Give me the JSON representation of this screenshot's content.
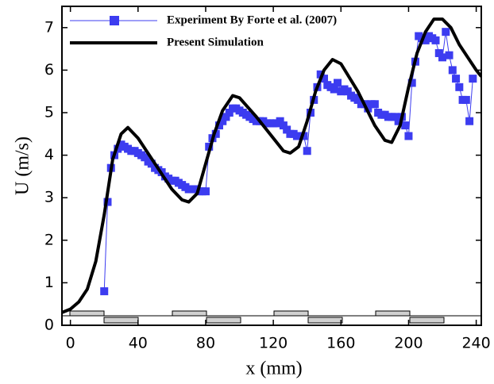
{
  "chart_data": {
    "type": "line",
    "xlabel": "x (mm)",
    "ylabel": "U (m/s)",
    "xlim": [
      -5,
      243
    ],
    "ylim": [
      0,
      7.5
    ],
    "xticks": [
      0,
      40,
      80,
      120,
      160,
      200,
      240
    ],
    "yticks": [
      0,
      1,
      2,
      3,
      4,
      5,
      6,
      7
    ],
    "legend": "upper left",
    "series": [
      {
        "name": "Experiment By Forte et al. (2007)",
        "color": "#3c3cf0",
        "marker": "square",
        "linewidth": 1,
        "x": [
          20,
          22,
          24,
          26,
          28,
          30,
          32,
          34,
          36,
          38,
          40,
          42,
          44,
          46,
          48,
          50,
          52,
          54,
          56,
          58,
          60,
          62,
          64,
          66,
          68,
          70,
          72,
          74,
          76,
          78,
          80,
          82,
          84,
          86,
          88,
          90,
          92,
          94,
          96,
          98,
          100,
          102,
          104,
          106,
          108,
          110,
          112,
          114,
          116,
          118,
          120,
          122,
          124,
          126,
          128,
          130,
          132,
          134,
          136,
          138,
          140,
          142,
          144,
          146,
          148,
          150,
          152,
          154,
          156,
          158,
          160,
          162,
          164,
          166,
          168,
          170,
          172,
          174,
          176,
          178,
          180,
          182,
          184,
          186,
          188,
          190,
          192,
          194,
          196,
          198,
          200,
          202,
          204,
          206,
          208,
          210,
          212,
          214,
          216,
          218,
          220,
          222,
          224,
          226,
          228,
          230,
          232,
          234,
          236,
          238
        ],
        "values": [
          0.8,
          2.9,
          3.7,
          4.0,
          4.15,
          4.25,
          4.2,
          4.15,
          4.1,
          4.1,
          4.05,
          4.0,
          3.95,
          3.85,
          3.8,
          3.7,
          3.65,
          3.6,
          3.5,
          3.45,
          3.4,
          3.4,
          3.35,
          3.3,
          3.25,
          3.2,
          3.2,
          3.2,
          3.15,
          3.15,
          3.15,
          4.2,
          4.4,
          4.5,
          4.7,
          4.8,
          4.9,
          5.0,
          5.1,
          5.1,
          5.05,
          5.0,
          4.95,
          4.9,
          4.85,
          4.8,
          4.8,
          4.8,
          4.75,
          4.75,
          4.75,
          4.75,
          4.8,
          4.7,
          4.6,
          4.5,
          4.5,
          4.45,
          4.45,
          4.45,
          4.1,
          5.0,
          5.3,
          5.6,
          5.9,
          5.8,
          5.65,
          5.6,
          5.55,
          5.7,
          5.5,
          5.55,
          5.5,
          5.4,
          5.35,
          5.3,
          5.2,
          5.2,
          5.1,
          5.2,
          5.2,
          5.0,
          4.95,
          4.95,
          4.9,
          4.9,
          4.9,
          4.8,
          4.9,
          4.7,
          4.45,
          5.7,
          6.2,
          6.8,
          6.75,
          6.7,
          6.8,
          6.75,
          6.7,
          6.4,
          6.3,
          6.9,
          6.35,
          6.0,
          5.8,
          5.6,
          5.3,
          5.3,
          4.8,
          5.8
        ]
      },
      {
        "name": "Present Simulation",
        "color": "#000000",
        "linewidth": 4,
        "x": [
          -5,
          0,
          5,
          10,
          15,
          20,
          25,
          30,
          34,
          40,
          50,
          60,
          66,
          70,
          75,
          80,
          85,
          90,
          96,
          100,
          110,
          120,
          126,
          130,
          135,
          140,
          145,
          150,
          155,
          160,
          170,
          180,
          186,
          190,
          195,
          200,
          205,
          210,
          215,
          220,
          225,
          230,
          235,
          240,
          243
        ],
        "values": [
          0.3,
          0.38,
          0.55,
          0.85,
          1.5,
          2.6,
          3.9,
          4.5,
          4.65,
          4.4,
          3.8,
          3.2,
          2.95,
          2.9,
          3.1,
          3.8,
          4.5,
          5.05,
          5.4,
          5.35,
          4.9,
          4.4,
          4.1,
          4.05,
          4.2,
          4.8,
          5.5,
          6.0,
          6.25,
          6.15,
          5.5,
          4.7,
          4.35,
          4.3,
          4.7,
          5.6,
          6.4,
          6.9,
          7.2,
          7.2,
          7.0,
          6.6,
          6.3,
          6.0,
          5.85
        ]
      }
    ]
  }
}
